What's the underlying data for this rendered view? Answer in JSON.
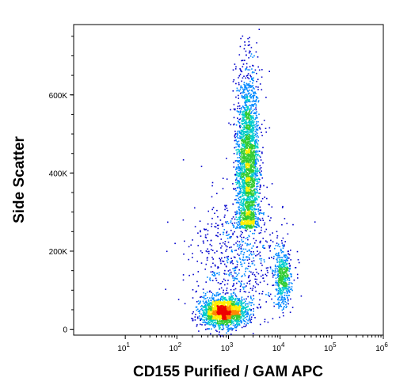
{
  "chart_data": {
    "type": "scatter",
    "subtype": "density-dot-plot",
    "title": "",
    "xlabel": "CD155 Purified / GAM APC",
    "ylabel": "Side Scatter",
    "xscale": "log",
    "xlim": [
      1,
      1000000
    ],
    "yscale": "linear",
    "ylim": [
      -15000,
      780000
    ],
    "x_ticks": [
      {
        "value": 10,
        "base": "10",
        "exp": "1"
      },
      {
        "value": 100,
        "base": "10",
        "exp": "2"
      },
      {
        "value": 1000,
        "base": "10",
        "exp": "3"
      },
      {
        "value": 10000,
        "base": "10",
        "exp": "4"
      },
      {
        "value": 100000,
        "base": "10",
        "exp": "5"
      },
      {
        "value": 1000000,
        "base": "10",
        "exp": "6"
      }
    ],
    "y_ticks": [
      {
        "value": 0,
        "label": "0"
      },
      {
        "value": 200000,
        "label": "200K"
      },
      {
        "value": 400000,
        "label": "400K"
      },
      {
        "value": 600000,
        "label": "600K"
      }
    ],
    "color_scale": [
      "#0000cc",
      "#0088ff",
      "#00cccc",
      "#33cc33",
      "#ffee00",
      "#ff8800",
      "#ee0000"
    ],
    "populations": [
      {
        "x_center": 2300,
        "y_center": 420000,
        "x_log_sd": 0.11,
        "y_sd": 120000,
        "y_min": 260000,
        "y_max": 780000,
        "points": 2600
      },
      {
        "x_center": 800,
        "y_center": 45000,
        "x_log_sd": 0.22,
        "y_sd": 18000,
        "points": 1900
      },
      {
        "x_center": 11000,
        "y_center": 130000,
        "x_log_sd": 0.08,
        "y_sd": 35000,
        "points": 500
      },
      {
        "x_center": 1500,
        "y_center": 180000,
        "x_log_sd": 0.45,
        "y_sd": 80000,
        "points": 700
      }
    ]
  }
}
